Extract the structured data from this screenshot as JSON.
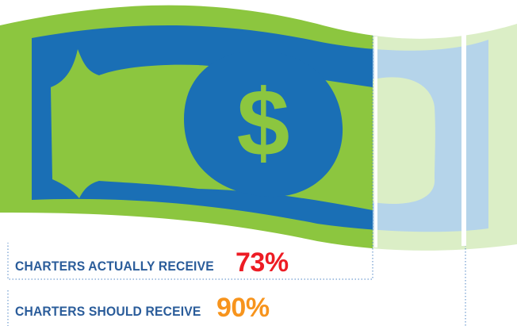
{
  "infographic": {
    "dollar_symbol": "$",
    "actual": {
      "text": "CHARTERS ACTUALLY RECEIVE",
      "value": "73%",
      "fraction": 0.73
    },
    "should": {
      "text": "CHARTERS SHOULD RECEIVE",
      "value": "90%",
      "fraction": 0.9
    }
  },
  "colors": {
    "bill_green": "#8cc63f",
    "bill_blue": "#1a6fb5",
    "faded_green": "#dbeec6",
    "faded_blue": "#b5d4ea",
    "label_text": "#2a5c9a",
    "actual_accent": "#ed1c24",
    "should_accent": "#f7941d",
    "guide_line": "#4f86c6"
  }
}
